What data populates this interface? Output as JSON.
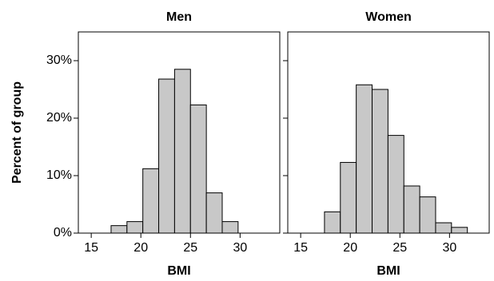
{
  "chart_data": [
    {
      "type": "histogram",
      "title": "Men",
      "xlabel": "BMI",
      "ylabel": "Percent of group",
      "bins": [
        17.0,
        18.6,
        20.2,
        21.8,
        23.4,
        25.0,
        26.6,
        28.2,
        29.8
      ],
      "values": [
        1.3,
        2.0,
        11.2,
        26.8,
        28.5,
        22.3,
        7.0,
        2.0
      ],
      "color": "#c8c8c8",
      "xlim": [
        13.7,
        34
      ],
      "xticks": [
        15,
        20,
        25,
        30
      ],
      "ylim": [
        0,
        35
      ],
      "yticks": [
        {
          "value": 0,
          "label": "0%"
        },
        {
          "value": 10,
          "label": "10%"
        },
        {
          "value": 20,
          "label": "20%"
        },
        {
          "value": 30,
          "label": "30%"
        }
      ]
    },
    {
      "type": "histogram",
      "title": "Women",
      "xlabel": "BMI",
      "bins": [
        17.4,
        19.0,
        20.6,
        22.2,
        23.8,
        25.4,
        27.0,
        28.6,
        30.2,
        31.8
      ],
      "values": [
        3.7,
        12.3,
        25.8,
        25.0,
        17.0,
        8.2,
        6.3,
        1.8,
        1.0
      ],
      "color": "#c8c8c8",
      "xlim": [
        13.7,
        34
      ],
      "xticks": [
        15,
        20,
        25,
        30
      ],
      "ylim": [
        0,
        35
      ],
      "yticks": [
        0,
        10,
        20,
        30
      ]
    }
  ]
}
